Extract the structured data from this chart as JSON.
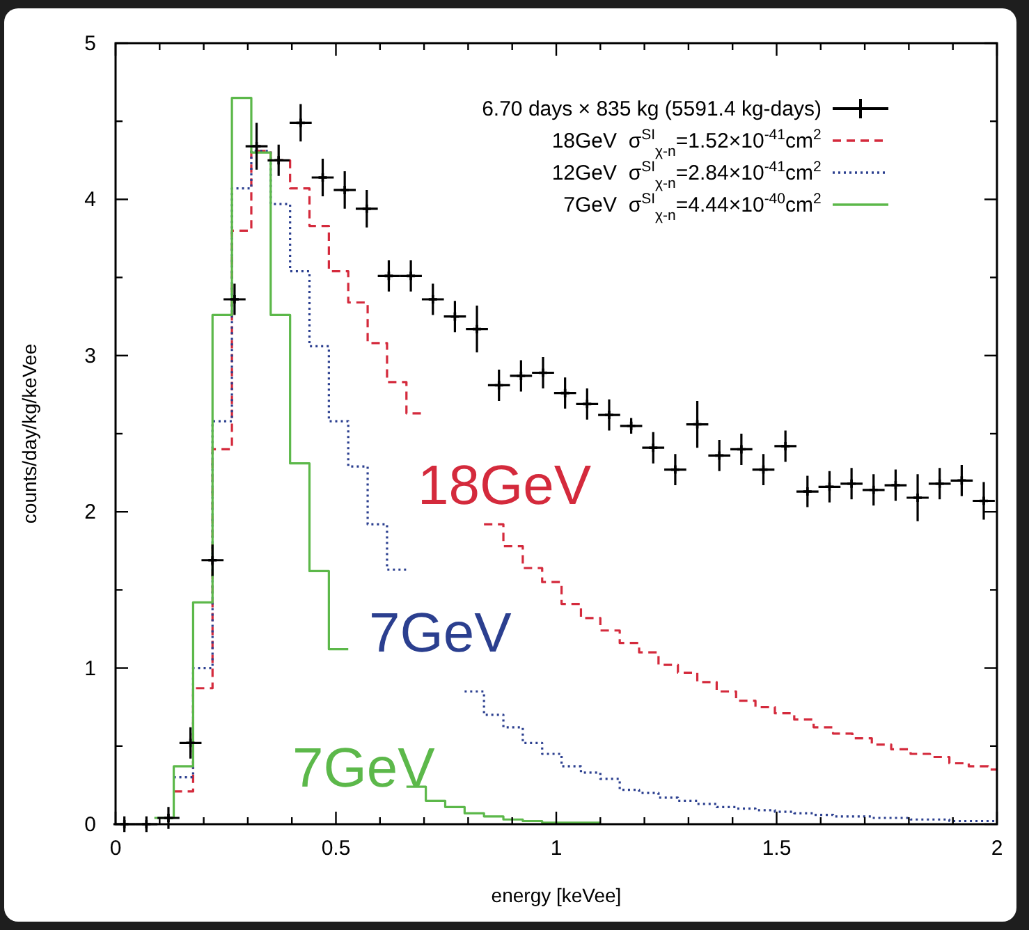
{
  "chart_data": {
    "type": "step",
    "xlabel": "energy [keVee]",
    "ylabel": "counts/day/kg/keVee",
    "xlim": [
      0,
      2
    ],
    "ylim": [
      0,
      5
    ],
    "xticks": [
      0,
      {
        "value": 0.1,
        "label": null
      },
      {
        "value": 0.2,
        "label": null
      },
      {
        "value": 0.3,
        "label": null
      },
      {
        "value": 0.4,
        "label": null
      },
      0.5,
      {
        "value": 0.6,
        "label": null
      },
      {
        "value": 0.7,
        "label": null
      },
      {
        "value": 0.8,
        "label": null
      },
      {
        "value": 0.9,
        "label": null
      },
      1,
      {
        "value": 1.1,
        "label": null
      },
      {
        "value": 1.2,
        "label": null
      },
      {
        "value": 1.3,
        "label": null
      },
      {
        "value": 1.4,
        "label": null
      },
      1.5,
      {
        "value": 1.6,
        "label": null
      },
      {
        "value": 1.7,
        "label": null
      },
      {
        "value": 1.8,
        "label": null
      },
      {
        "value": 1.9,
        "label": null
      },
      2
    ],
    "yticks": [
      0,
      {
        "value": 0.5,
        "label": null
      },
      1,
      {
        "value": 1.5,
        "label": null
      },
      2,
      {
        "value": 2.5,
        "label": null
      },
      3,
      {
        "value": 3.5,
        "label": null
      },
      4,
      {
        "value": 4.5,
        "label": null
      },
      5
    ],
    "legend": "top right",
    "x": [
      0.088,
      0.132,
      0.176,
      0.22,
      0.264,
      0.308,
      0.352,
      0.396,
      0.44,
      0.484,
      0.528,
      0.572,
      0.616,
      0.66,
      0.704,
      0.748,
      0.792,
      0.836,
      0.88,
      0.924,
      0.968,
      1.012,
      1.056,
      1.1,
      1.144,
      1.188,
      1.232,
      1.276,
      1.32,
      1.364,
      1.408,
      1.452,
      1.496,
      1.54,
      1.584,
      1.628,
      1.672,
      1.716,
      1.76,
      1.804,
      1.848,
      1.892,
      1.936,
      1.98,
      2
    ],
    "series": [
      {
        "type": "scatter",
        "marker": "cross",
        "name": "6.70 days × 835 kg (5591.4 kg-days)",
        "color": "#000000",
        "x": [
          0.02,
          0.07,
          0.12,
          0.17,
          0.22,
          0.27,
          0.32,
          0.37,
          0.42,
          0.47,
          0.52,
          0.57,
          0.62,
          0.67,
          0.72,
          0.77,
          0.82,
          0.87,
          0.92,
          0.97,
          1.02,
          1.07,
          1.12,
          1.17,
          1.22,
          1.27,
          1.32,
          1.37,
          1.42,
          1.47,
          1.52,
          1.57,
          1.62,
          1.67,
          1.72,
          1.77,
          1.82,
          1.87,
          1.92,
          1.97
        ],
        "values": [
          0,
          0,
          0.04,
          0.52,
          1.69,
          3.36,
          4.34,
          4.25,
          4.49,
          4.14,
          4.06,
          3.94,
          3.51,
          3.51,
          3.36,
          3.25,
          3.17,
          2.81,
          2.87,
          2.89,
          2.76,
          2.69,
          2.62,
          2.55,
          2.41,
          2.27,
          2.56,
          2.36,
          2.4,
          2.27,
          2.42,
          2.13,
          2.16,
          2.18,
          2.14,
          2.17,
          2.09,
          2.18,
          2.2,
          2.07
        ],
        "errors": [
          0.05,
          0.05,
          0.07,
          0.1,
          0.1,
          0.1,
          0.15,
          0.1,
          0.12,
          0.12,
          0.12,
          0.12,
          0.1,
          0.1,
          0.1,
          0.1,
          0.15,
          0.1,
          0.1,
          0.1,
          0.1,
          0.1,
          0.1,
          0.05,
          0.1,
          0.1,
          0.15,
          0.1,
          0.1,
          0.1,
          0.1,
          0.1,
          0.1,
          0.1,
          0.1,
          0.1,
          0.15,
          0.1,
          0.1,
          0.12
        ],
        "xerrors": [
          0.025,
          0.025,
          0.025,
          0.025,
          0.025,
          0.025,
          0.025,
          0.025,
          0.025,
          0.025,
          0.025,
          0.025,
          0.025,
          0.025,
          0.025,
          0.025,
          0.025,
          0.025,
          0.025,
          0.025,
          0.025,
          0.025,
          0.025,
          0.025,
          0.025,
          0.025,
          0.025,
          0.025,
          0.025,
          0.025,
          0.025,
          0.025,
          0.025,
          0.025,
          0.025,
          0.025,
          0.025,
          0.025,
          0.025,
          0.025
        ]
      },
      {
        "line_style": "dashed",
        "name": "18GeV  σ$^{SI}$$_{χ-n}$=1.52×10$^{-41}$cm$^{2}$",
        "color": "#d42a3c",
        "values": [
          null,
          0.21,
          0.87,
          2.4,
          3.8,
          4.31,
          4.25,
          4.07,
          3.83,
          3.54,
          3.34,
          3.08,
          2.83,
          2.63,
          2.63,
          null,
          null,
          1.92,
          1.78,
          1.64,
          1.55,
          1.41,
          1.32,
          1.24,
          1.16,
          1.1,
          1.02,
          0.97,
          0.91,
          0.85,
          0.79,
          0.75,
          0.71,
          0.67,
          0.62,
          0.58,
          0.55,
          0.51,
          0.48,
          0.45,
          0.43,
          0.39,
          0.37,
          0.35,
          0.35
        ]
      },
      {
        "line_style": "dotted",
        "name": "12GeV  σ$^{SI}$$_{χ-n}$=2.84×10$^{-41}$cm$^{2}$",
        "color": "#2b3f8f",
        "values": [
          null,
          0.3,
          1,
          2.58,
          4.07,
          4.31,
          3.97,
          3.54,
          3.06,
          2.58,
          2.29,
          1.92,
          1.63,
          1.63,
          null,
          null,
          0.85,
          0.7,
          0.62,
          0.52,
          0.45,
          0.37,
          0.33,
          0.29,
          0.22,
          0.2,
          0.17,
          0.15,
          0.13,
          0.11,
          0.1,
          0.09,
          0.08,
          0.07,
          0.06,
          0.05,
          0.05,
          0.04,
          0.04,
          0.03,
          0.03,
          0.02,
          0.02,
          0.02,
          0.02
        ]
      },
      {
        "line_style": "solid",
        "name": "7GeV  σ$^{SI}$$_{χ-n}$=4.44×10$^{-40}$cm$^{2}$",
        "color": "#5cb84a",
        "values": [
          0.04,
          0.37,
          1.42,
          3.26,
          4.65,
          4.3,
          3.26,
          2.31,
          1.62,
          1.12,
          1.12,
          null,
          null,
          0.24,
          0.15,
          0.11,
          0.07,
          0.05,
          0.03,
          0.02,
          0.01,
          0.01,
          0.01,
          0.01,
          null,
          null,
          null,
          null,
          null,
          null,
          null,
          null,
          null,
          null,
          null,
          null,
          null,
          null,
          null,
          null,
          null,
          null,
          null,
          null,
          null
        ]
      }
    ],
    "annotations": [
      "18GeV",
      "7GeV",
      "7GeV"
    ]
  }
}
